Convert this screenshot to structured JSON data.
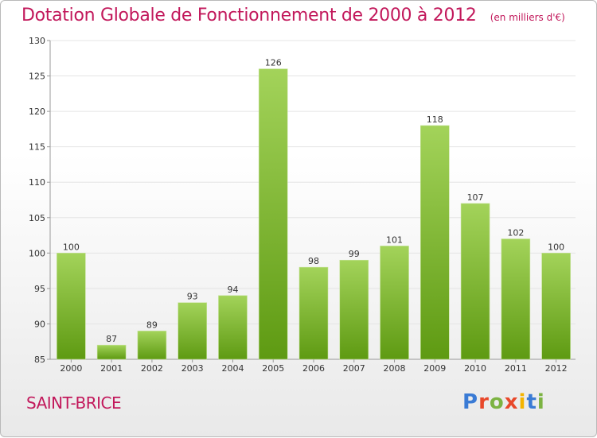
{
  "header": {
    "title": "Dotation Globale de Fonctionnement de 2000 à 2012",
    "subtitle": "(en milliers d'€)"
  },
  "footer": {
    "commune": "SAINT-BRICE",
    "brand": "Proxiti"
  },
  "colors": {
    "title": "#c2185b",
    "bar_top": "#a3d35a",
    "bar_bottom": "#5e9a12",
    "grid": "#e4e4e4"
  },
  "chart_data": {
    "type": "bar",
    "title": "Dotation Globale de Fonctionnement de 2000 à 2012",
    "subtitle": "(en milliers d'€)",
    "xlabel": "",
    "ylabel": "",
    "categories": [
      "2000",
      "2001",
      "2002",
      "2003",
      "2004",
      "2005",
      "2006",
      "2007",
      "2008",
      "2009",
      "2010",
      "2011",
      "2012"
    ],
    "values": [
      100,
      87,
      89,
      93,
      94,
      126,
      98,
      99,
      101,
      118,
      107,
      102,
      100
    ],
    "ylim": [
      85,
      130
    ],
    "yticks": [
      85,
      90,
      95,
      100,
      105,
      110,
      115,
      120,
      125,
      130
    ],
    "grid": true,
    "data_labels": true
  }
}
